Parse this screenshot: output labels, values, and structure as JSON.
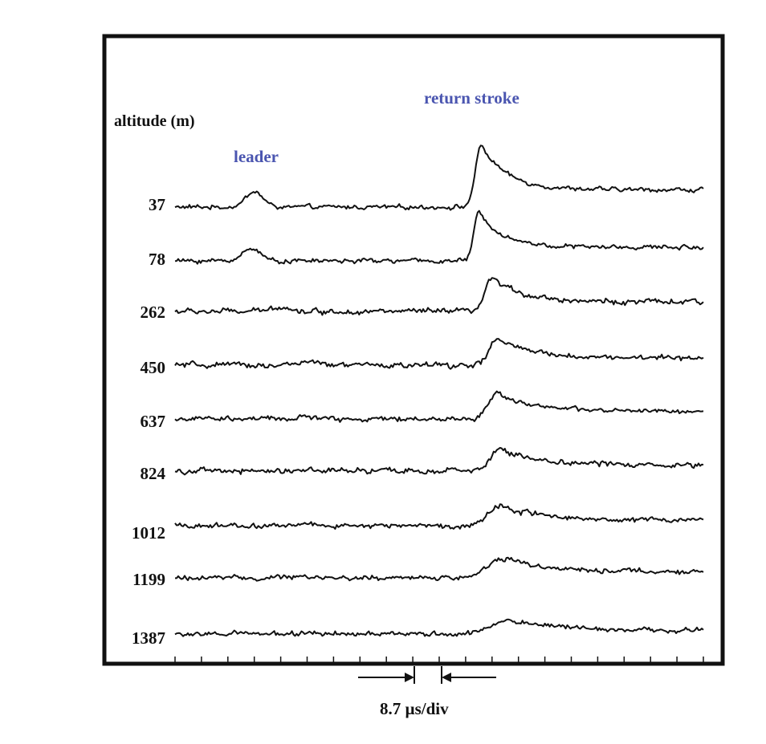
{
  "chart_data": {
    "type": "line",
    "title": "",
    "ylabel": "altitude (m)",
    "xlabel": "",
    "time_scale": "8.7 µs/div",
    "x_divisions": 20,
    "grid": false,
    "annotations": {
      "leader": "leader",
      "return_stroke": "return stroke"
    },
    "series": [
      {
        "name": "37",
        "leader_div": 3.0,
        "leader_amp": 0.35,
        "stroke_div": 11.6,
        "stroke_amp": 1.4,
        "rise": 0.55,
        "decay": 1.6,
        "noise": 0.07
      },
      {
        "name": "78",
        "leader_div": 2.9,
        "leader_amp": 0.3,
        "stroke_div": 11.5,
        "stroke_amp": 1.1,
        "rise": 0.45,
        "decay": 1.5,
        "noise": 0.07
      },
      {
        "name": "262",
        "leader_div": 4.0,
        "leader_amp": 0.12,
        "stroke_div": 12.0,
        "stroke_amp": 0.75,
        "rise": 0.6,
        "decay": 2.0,
        "noise": 0.09
      },
      {
        "name": "450",
        "leader_div": 5.0,
        "leader_amp": 0.08,
        "stroke_div": 12.2,
        "stroke_amp": 0.6,
        "rise": 0.7,
        "decay": 2.0,
        "noise": 0.09
      },
      {
        "name": "637",
        "leader_div": 5.0,
        "leader_amp": 0.05,
        "stroke_div": 12.2,
        "stroke_amp": 0.6,
        "rise": 0.8,
        "decay": 2.2,
        "noise": 0.08
      },
      {
        "name": "824",
        "leader_div": 5.0,
        "leader_amp": 0.05,
        "stroke_div": 12.3,
        "stroke_amp": 0.5,
        "rise": 0.9,
        "decay": 2.4,
        "noise": 0.09
      },
      {
        "name": "1012",
        "leader_div": 5.0,
        "leader_amp": 0.03,
        "stroke_div": 12.3,
        "stroke_amp": 0.45,
        "rise": 1.1,
        "decay": 2.8,
        "noise": 0.08
      },
      {
        "name": "1199",
        "leader_div": 5.0,
        "leader_amp": 0.03,
        "stroke_div": 12.4,
        "stroke_amp": 0.45,
        "rise": 1.4,
        "decay": 3.0,
        "noise": 0.08
      },
      {
        "name": "1387",
        "leader_div": 5.0,
        "leader_amp": 0.02,
        "stroke_div": 12.6,
        "stroke_amp": 0.3,
        "rise": 1.5,
        "decay": 3.5,
        "noise": 0.08
      }
    ]
  },
  "colors": {
    "annotation": "#4a55b0",
    "trace": "#111111",
    "frame": "#111111"
  }
}
